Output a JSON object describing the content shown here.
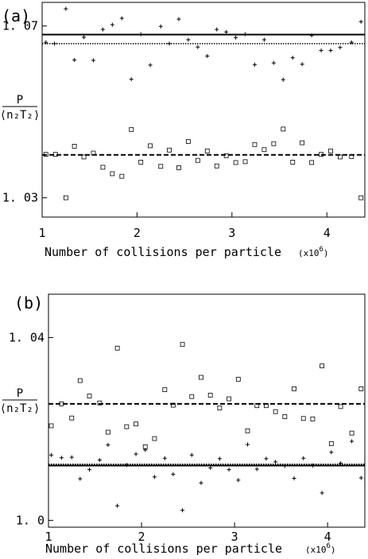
{
  "chart_data": [
    {
      "type": "scatter",
      "panel_label": "(a)",
      "xlabel": "Number of collisions per particle",
      "x_multiplier": "(x10",
      "x_multiplier_exp": "6",
      "x_multiplier_close": ")",
      "ylabel_num": "P",
      "ylabel_den": "⟨n₂T₂⟩",
      "xlim": [
        1.0,
        4.4
      ],
      "ylim": [
        1.0255,
        1.0755
      ],
      "x_ticks": [
        1,
        2,
        3,
        4
      ],
      "x_tick_labels": [
        "1",
        "2",
        "3",
        "4"
      ],
      "y_ticks": [
        1.03,
        1.07
      ],
      "y_tick_labels": [
        "1. 03",
        "1. 07"
      ],
      "reference_lines": [
        {
          "style": "solid",
          "y": 1.068
        },
        {
          "style": "dotted",
          "y": 1.0659
        },
        {
          "style": "dashed",
          "y": 1.04
        }
      ],
      "series": [
        {
          "marker": "plus",
          "x": [
            1.04,
            1.13,
            1.25,
            1.34,
            1.44,
            1.54,
            1.64,
            1.74,
            1.84,
            1.94,
            2.04,
            2.14,
            2.25,
            2.34,
            2.44,
            2.54,
            2.64,
            2.74,
            2.84,
            2.94,
            3.04,
            3.14,
            3.24,
            3.34,
            3.44,
            3.54,
            3.64,
            3.74,
            3.84,
            3.94,
            4.04,
            4.14,
            4.26,
            4.36
          ],
          "y": [
            1.0662,
            1.0659,
            1.074,
            1.0621,
            1.0674,
            1.062,
            1.0692,
            1.0703,
            1.0718,
            1.0576,
            1.0681,
            1.0609,
            1.0699,
            1.0659,
            1.0716,
            1.0668,
            1.0651,
            1.063,
            1.0692,
            1.0686,
            1.0673,
            1.0681,
            1.061,
            1.0668,
            1.0614,
            1.0575,
            1.0626,
            1.0611,
            1.0678,
            1.0643,
            1.0643,
            1.065,
            1.0662,
            1.071
          ]
        },
        {
          "marker": "square",
          "x": [
            1.04,
            1.14,
            1.25,
            1.34,
            1.44,
            1.54,
            1.64,
            1.74,
            1.84,
            1.94,
            2.04,
            2.14,
            2.25,
            2.34,
            2.44,
            2.54,
            2.64,
            2.74,
            2.84,
            2.94,
            3.04,
            3.14,
            3.24,
            3.34,
            3.44,
            3.54,
            3.64,
            3.74,
            3.84,
            3.94,
            4.04,
            4.14,
            4.26,
            4.36
          ],
          "y": [
            1.0401,
            1.0401,
            1.03,
            1.042,
            1.0395,
            1.0404,
            1.0371,
            1.0356,
            1.035,
            1.0459,
            1.0383,
            1.0421,
            1.0373,
            1.0411,
            1.037,
            1.0431,
            1.0387,
            1.0409,
            1.0374,
            1.0398,
            1.0382,
            1.0384,
            1.0424,
            1.0412,
            1.0426,
            1.046,
            1.0383,
            1.0428,
            1.0382,
            1.0401,
            1.0409,
            1.0395,
            1.0396,
            1.03
          ]
        }
      ]
    },
    {
      "type": "scatter",
      "panel_label": "(b)",
      "xlabel": "Number of collisions per particle",
      "x_multiplier": "(x10",
      "x_multiplier_exp": "6",
      "x_multiplier_close": ")",
      "ylabel_num": "P",
      "ylabel_den": "⟨n₂T₂⟩",
      "xlim": [
        1.0,
        4.4
      ],
      "ylim": [
        0.9985,
        1.0495
      ],
      "x_ticks": [
        1,
        2,
        3,
        4
      ],
      "x_tick_labels": [
        "1",
        "2",
        "3",
        "4"
      ],
      "y_ticks": [
        1.0,
        1.04
      ],
      "y_tick_labels": [
        "1. 0",
        "1. 04"
      ],
      "reference_lines": [
        {
          "style": "solid",
          "y": 1.012
        },
        {
          "style": "dotted",
          "y": 1.0123
        },
        {
          "style": "dashed",
          "y": 1.0255
        }
      ],
      "series": [
        {
          "marker": "plus",
          "x": [
            1.03,
            1.14,
            1.25,
            1.34,
            1.44,
            1.55,
            1.64,
            1.74,
            1.84,
            1.94,
            2.04,
            2.14,
            2.25,
            2.34,
            2.44,
            2.54,
            2.64,
            2.74,
            2.84,
            2.94,
            3.04,
            3.14,
            3.24,
            3.34,
            3.44,
            3.54,
            3.64,
            3.74,
            3.84,
            3.94,
            4.04,
            4.14,
            4.26,
            4.36
          ],
          "y": [
            1.0143,
            1.0137,
            1.0138,
            1.0091,
            1.0111,
            1.0132,
            1.0165,
            1.0032,
            1.0121,
            1.0145,
            1.0154,
            1.0095,
            1.0136,
            1.0101,
            1.0022,
            1.0143,
            1.0082,
            1.0115,
            1.0135,
            1.0111,
            1.0088,
            1.0166,
            1.0112,
            1.0135,
            1.0128,
            1.0119,
            1.0092,
            1.0136,
            1.012,
            1.006,
            1.0149,
            1.0125,
            1.0173,
            1.0093
          ]
        },
        {
          "marker": "square",
          "x": [
            1.03,
            1.14,
            1.25,
            1.34,
            1.44,
            1.55,
            1.64,
            1.74,
            1.84,
            1.94,
            2.04,
            2.14,
            2.25,
            2.34,
            2.44,
            2.54,
            2.64,
            2.74,
            2.84,
            2.94,
            3.04,
            3.14,
            3.24,
            3.34,
            3.44,
            3.54,
            3.64,
            3.74,
            3.84,
            3.94,
            4.04,
            4.14,
            4.26,
            4.36
          ],
          "y": [
            1.0207,
            1.0255,
            1.0224,
            1.0306,
            1.0272,
            1.0257,
            1.0193,
            1.0377,
            1.0205,
            1.0211,
            1.0161,
            1.0179,
            1.0286,
            1.0252,
            1.0385,
            1.0271,
            1.0313,
            1.0274,
            1.0246,
            1.0266,
            1.0309,
            1.0196,
            1.0251,
            1.0251,
            1.0238,
            1.0227,
            1.0288,
            1.0223,
            1.0222,
            1.0338,
            1.0168,
            1.0249,
            1.0191,
            1.0288
          ]
        }
      ]
    }
  ]
}
